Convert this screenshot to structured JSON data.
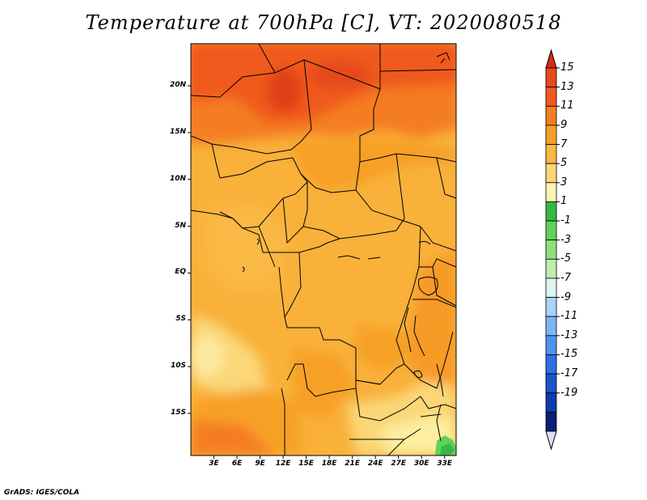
{
  "title": "Temperature at 700hPa [C], VT: 2020080518",
  "credit": "GrADS: IGES/COLA",
  "map": {
    "lon_range": [
      0,
      34.5
    ],
    "lat_range": [
      -19.5,
      24.5
    ],
    "lat_ticks": [
      {
        "value": 20,
        "label": "20N"
      },
      {
        "value": 15,
        "label": "15N"
      },
      {
        "value": 10,
        "label": "10N"
      },
      {
        "value": 5,
        "label": "5N"
      },
      {
        "value": 0,
        "label": "EQ"
      },
      {
        "value": -5,
        "label": "5S"
      },
      {
        "value": -10,
        "label": "10S"
      },
      {
        "value": -15,
        "label": "15S"
      }
    ],
    "lon_ticks": [
      {
        "value": 3,
        "label": "3E"
      },
      {
        "value": 6,
        "label": "6E"
      },
      {
        "value": 9,
        "label": "9E"
      },
      {
        "value": 12,
        "label": "12E"
      },
      {
        "value": 15,
        "label": "15E"
      },
      {
        "value": 18,
        "label": "18E"
      },
      {
        "value": 21,
        "label": "21E"
      },
      {
        "value": 24,
        "label": "24E"
      },
      {
        "value": 27,
        "label": "27E"
      },
      {
        "value": 30,
        "label": "30E"
      },
      {
        "value": 33,
        "label": "33E"
      }
    ]
  },
  "colorbar": {
    "labels": [
      "15",
      "13",
      "11",
      "9",
      "7",
      "5",
      "3",
      "1",
      "-1",
      "-3",
      "-5",
      "-7",
      "-9",
      "-11",
      "-13",
      "-15",
      "-17",
      "-19"
    ],
    "colors": [
      "#e64a1b",
      "#f05a1e",
      "#f47d22",
      "#f7a028",
      "#fab840",
      "#fbd778",
      "#fdf4b4",
      "#37b846",
      "#5fd25a",
      "#8ee07c",
      "#bdeeb0",
      "#ddf3ee",
      "#aad2fa",
      "#7bb6f5",
      "#4e94ee",
      "#2c70e4",
      "#1a54cc",
      "#0e3ca8",
      "#0a1f78"
    ],
    "top_arrow_color": "#d92a14",
    "bottom_arrow_color": "#dcdcf5"
  }
}
